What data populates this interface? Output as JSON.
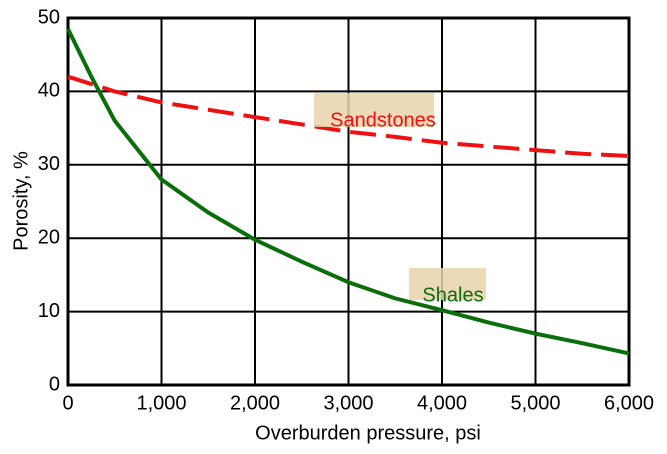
{
  "chart_data": {
    "type": "line",
    "x_label": "Overburden pressure, psi",
    "y_label": "Porosity, %",
    "x": [
      0,
      250,
      500,
      1000,
      1500,
      2000,
      2500,
      3000,
      3500,
      4000,
      4500,
      5000,
      5500,
      6000
    ],
    "series": [
      {
        "name": "Sandstones",
        "color": "#ee1111",
        "dashed": true,
        "values": [
          42,
          41,
          40,
          38.5,
          37.5,
          36.5,
          35.5,
          34.5,
          33.8,
          33,
          32.5,
          32,
          31.5,
          31.2
        ]
      },
      {
        "name": "Shales",
        "color": "#0a6e0a",
        "dashed": false,
        "values": [
          48.5,
          42,
          36,
          28,
          23.5,
          19.8,
          16.8,
          14,
          11.8,
          10.2,
          8.5,
          7,
          5.7,
          4.3
        ]
      }
    ],
    "xlim": [
      0,
      6000
    ],
    "ylim": [
      0,
      50
    ],
    "xticks": [
      0,
      {
        "value": 1000,
        "label": "1,000"
      },
      {
        "value": 2000,
        "label": "2,000"
      },
      {
        "value": 3000,
        "label": "3,000"
      },
      {
        "value": 4000,
        "label": "4,000"
      },
      {
        "value": 5000,
        "label": "5,000"
      },
      {
        "value": 6000,
        "label": "6,000"
      }
    ],
    "yticks": [
      0,
      10,
      20,
      30,
      40,
      50
    ],
    "grid": true
  }
}
